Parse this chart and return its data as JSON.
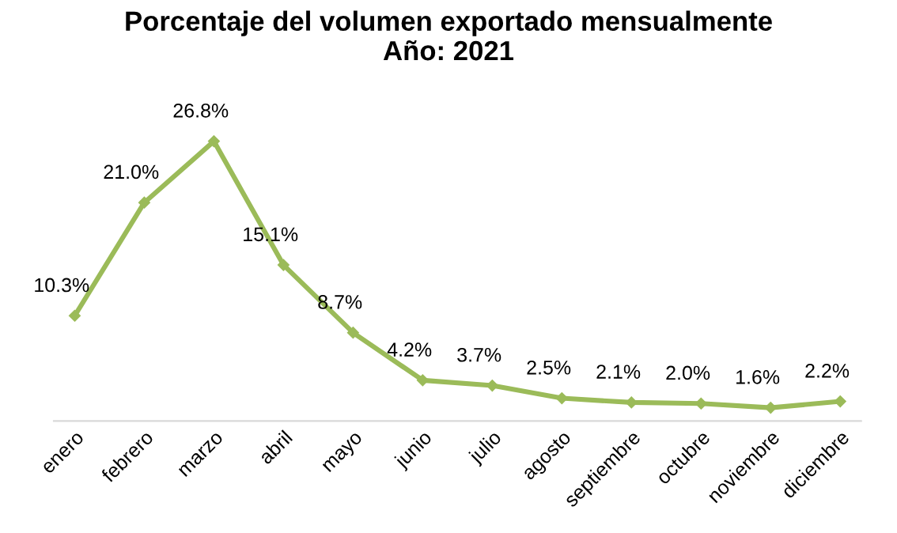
{
  "chart_data": {
    "type": "line",
    "title": "Porcentaje del volumen exportado mensualmente\nAño: 2021",
    "categories": [
      "enero",
      "febrero",
      "marzo",
      "abril",
      "mayo",
      "junio",
      "julio",
      "agosto",
      "septiembre",
      "octubre",
      "noviembre",
      "diciembre"
    ],
    "series": [
      {
        "color": "#9bbb59",
        "values": [
          10.3,
          21.0,
          26.8,
          15.1,
          8.7,
          4.2,
          3.7,
          2.5,
          2.1,
          2.0,
          1.6,
          2.2
        ],
        "value_labels": [
          "10.3%",
          "21.0%",
          "26.8%",
          "15.1%",
          "8.7%",
          "4.2%",
          "3.7%",
          "2.5%",
          "2.1%",
          "2.0%",
          "1.6%",
          "2.2%"
        ]
      }
    ],
    "tick_labels": "x",
    "grid": false,
    "legend": false,
    "marker": "diamond",
    "line_style": "solid"
  }
}
